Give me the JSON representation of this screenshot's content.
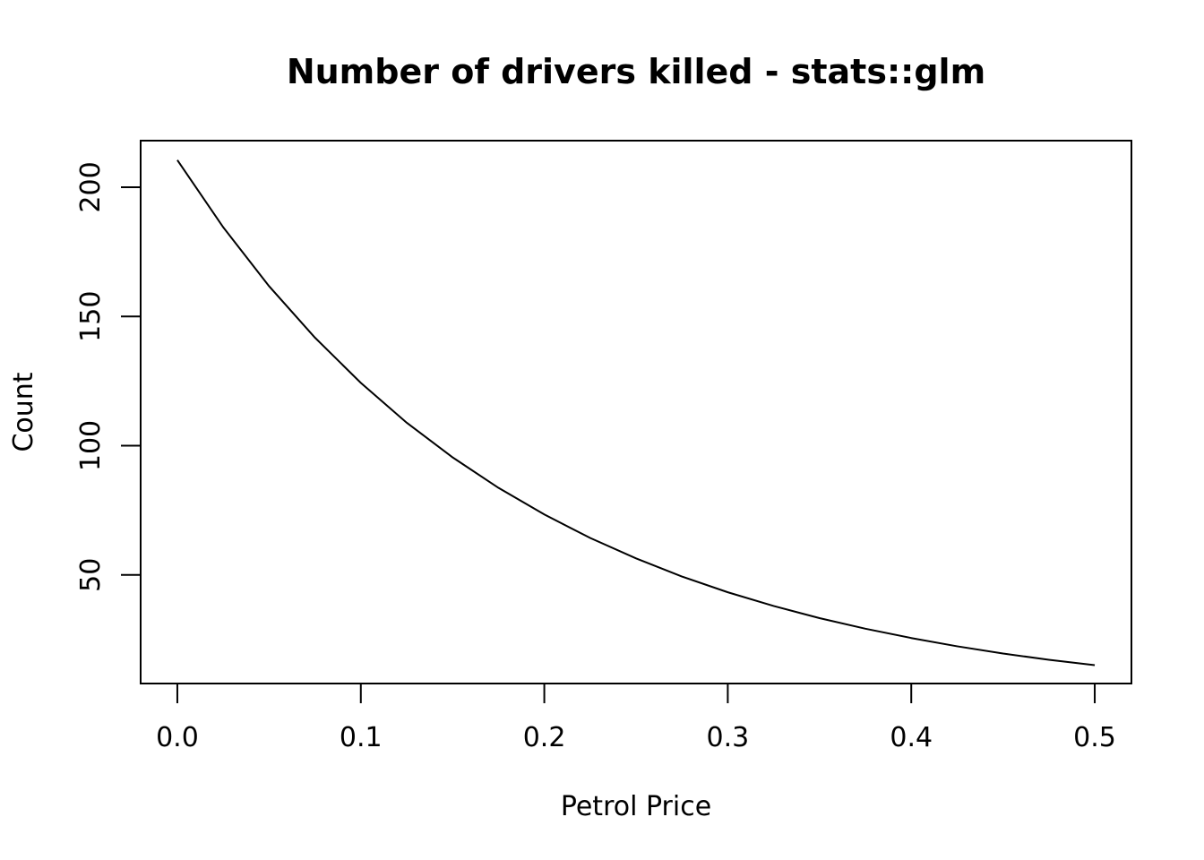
{
  "chart_data": {
    "type": "line",
    "title": "Number of drivers killed - stats::glm",
    "xlabel": "Petrol Price",
    "ylabel": "Count",
    "xlim": [
      -0.02,
      0.52
    ],
    "ylim": [
      8,
      218
    ],
    "x_ticks": [
      0.0,
      0.1,
      0.2,
      0.3,
      0.4,
      0.5
    ],
    "x_tick_labels": [
      "0.0",
      "0.1",
      "0.2",
      "0.3",
      "0.4",
      "0.5"
    ],
    "y_ticks": [
      50,
      100,
      150,
      200
    ],
    "y_tick_labels": [
      "50",
      "100",
      "150",
      "200"
    ],
    "grid": false,
    "legend": "none",
    "series": [
      {
        "color": "#000000",
        "x": [
          0.0,
          0.025,
          0.05,
          0.075,
          0.1,
          0.125,
          0.15,
          0.175,
          0.2,
          0.225,
          0.25,
          0.275,
          0.3,
          0.325,
          0.35,
          0.375,
          0.4,
          0.425,
          0.45,
          0.475,
          0.5
        ],
        "y": [
          210.5,
          184.5,
          161.7,
          141.8,
          124.3,
          108.9,
          95.5,
          83.7,
          73.4,
          64.3,
          56.4,
          49.4,
          43.3,
          38.0,
          33.3,
          29.2,
          25.6,
          22.4,
          19.6,
          17.2,
          15.1
        ]
      }
    ]
  }
}
